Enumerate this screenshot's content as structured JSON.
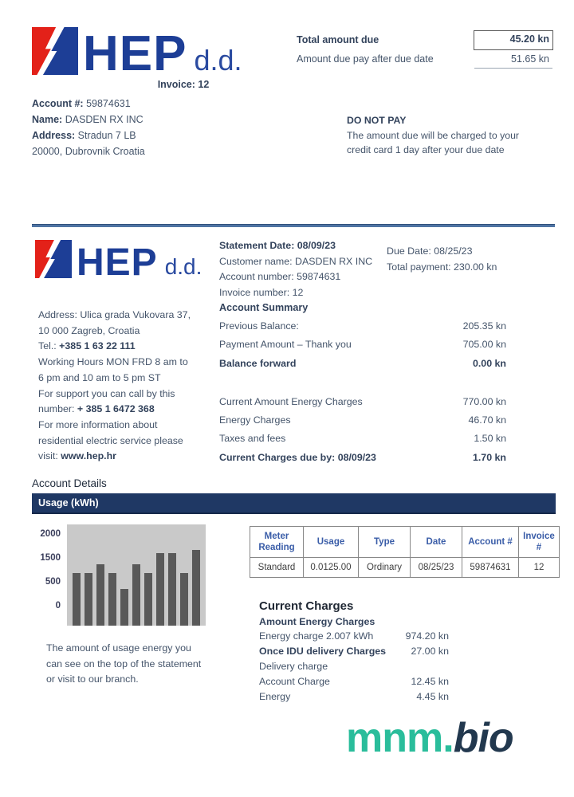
{
  "colors": {
    "hep_blue": "#1d3e96",
    "hep_red": "#e32119",
    "banner_navy": "#1f3864",
    "table_header_blue": "#3a5da8",
    "brand_teal": "#2abd9b",
    "brand_navy": "#22384e"
  },
  "header": {
    "logo_text": "HEP",
    "logo_suffix": "d.d.",
    "invoice_label": "Invoice: 12",
    "amount_due_label": "Total amount due",
    "amount_due_value": "45.20 kn",
    "amount_after_label": "Amount due pay after due date",
    "amount_after_value": "51.65 kn"
  },
  "account_info": {
    "account_label": "Account #:",
    "account_value": "59874631",
    "name_label": "Name:",
    "name_value": "DASDEN RX INC",
    "address_label": "Address:",
    "address_value": "Stradun 7 LB",
    "city_line": "20000, Dubrovnik Croatia"
  },
  "do_not_pay": {
    "title": "DO NOT PAY",
    "line1": "The amount due will be charged to your",
    "line2": "credit card 1 day after your due date"
  },
  "company": {
    "address1": "Address: Ulica grada Vukovara 37,",
    "address2": "10 000  Zagreb, Croatia",
    "tel_label": "Tel.: ",
    "tel_number": "+385 1 63 22 111",
    "hours1": "Working Hours  MON FRD 8 am to",
    "hours2": "6 pm and 10 am to 5 pm ST",
    "support1": "For support you can call by this",
    "support2_label": "number: ",
    "support2_number": "+ 385 1 6472 368",
    "info1": "For more information about",
    "info2": "residential electric service please",
    "visit_label": "visit: ",
    "visit_url": "www.hep.hr"
  },
  "statement": {
    "statement_date": "Statement Date: 08/09/23",
    "customer_name": "Customer name: DASDEN RX INC",
    "account_number": "Account number: 59874631",
    "invoice_number": "Invoice number: 12",
    "due_date": "Due Date: 08/25/23",
    "total_payment": "Total payment: 230.00 kn"
  },
  "summary": {
    "title": "Account Summary",
    "rows": [
      {
        "label": "Previous Balance:",
        "value": "205.35 kn"
      },
      {
        "label": "Payment Amount – Thank you",
        "value": "705.00 kn"
      },
      {
        "label": "Balance forward",
        "value": "0.00 kn"
      },
      {
        "label": "Current Amount Energy Charges",
        "value": "770.00 kn"
      },
      {
        "label": "Energy Charges",
        "value": "46.70 kn"
      },
      {
        "label": "Taxes and fees",
        "value": "1.50 kn"
      },
      {
        "label": "Current Charges due by: 08/09/23",
        "value": "1.70 kn"
      }
    ]
  },
  "details": {
    "title": "Account Details",
    "usage_banner": "Usage (kWh)"
  },
  "chart_data": {
    "type": "bar",
    "title": "Usage (kWh)",
    "categories": [
      "1",
      "2",
      "3",
      "4",
      "5",
      "6",
      "7",
      "8",
      "9",
      "10",
      "11"
    ],
    "values": [
      1250,
      1250,
      1450,
      1250,
      875,
      1450,
      1250,
      1725,
      1725,
      1250,
      1800
    ],
    "ytick_labels": [
      "2000",
      "1500",
      "500",
      "0"
    ],
    "xlabel": "",
    "ylabel": "",
    "ylim": [
      0,
      2400
    ],
    "grid": false,
    "legend": false,
    "bar_color": "#595959",
    "plot_bg": "#c9c9c9"
  },
  "meter_table": {
    "headers": [
      "Meter Reading",
      "Usage",
      "Type",
      "Date",
      "Account #",
      "Invoice #"
    ],
    "row": [
      "Standard",
      "0.0125.00",
      "Ordinary",
      "08/25/23",
      "59874631",
      "12"
    ]
  },
  "charges": {
    "title": "Current Charges",
    "subtitle": "Amount Energy Charges",
    "rows": [
      {
        "label": "Energy charge 2.007 kWh",
        "value": "974.20 kn"
      },
      {
        "label": "Once IDU delivery Charges",
        "value": "27.00 kn"
      },
      {
        "label": "Delivery charge",
        "value": ""
      },
      {
        "label": "Account Charge",
        "value": "12.45 kn"
      },
      {
        "label": "Energy",
        "value": "4.45 kn"
      }
    ]
  },
  "usage_note": {
    "line1": "The amount of usage energy you",
    "line2": "can see on the top of the statement",
    "line3": "or visit to our branch."
  },
  "footer": {
    "brand_primary": "mnm.",
    "brand_secondary": "bio"
  }
}
